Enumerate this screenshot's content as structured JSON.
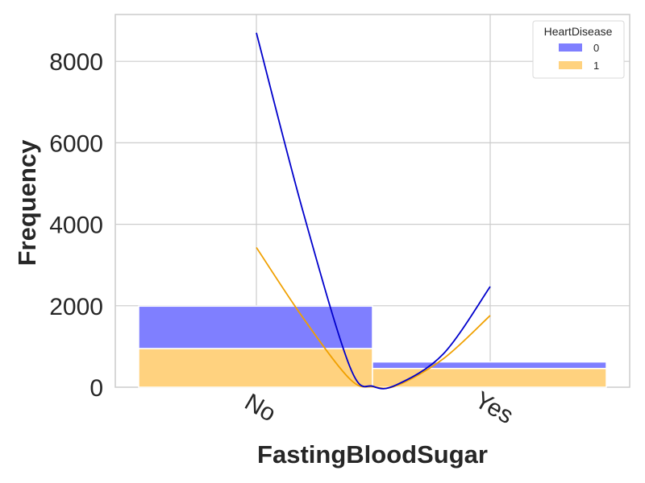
{
  "chart_data": {
    "type": "bar",
    "stacked": true,
    "categories": [
      "No",
      "Yes"
    ],
    "series": [
      {
        "name": "0",
        "values": [
          1040,
          160
        ],
        "color": "#7f7fff"
      },
      {
        "name": "1",
        "values": [
          950,
          460
        ],
        "color": "#ffd27f"
      }
    ],
    "kde": [
      {
        "name": "0",
        "color": "#0000cc",
        "points": [
          [
            0,
            8700
          ],
          [
            0.2,
            4300
          ],
          [
            0.4,
            500
          ],
          [
            0.5,
            20
          ],
          [
            0.6,
            60
          ],
          [
            0.8,
            820
          ],
          [
            1,
            2470
          ]
        ]
      },
      {
        "name": "1",
        "color": "#f0a000",
        "points": [
          [
            0,
            3430
          ],
          [
            0.2,
            1700
          ],
          [
            0.4,
            200
          ],
          [
            0.5,
            10
          ],
          [
            0.6,
            40
          ],
          [
            0.8,
            700
          ],
          [
            1,
            1760
          ]
        ]
      }
    ],
    "xlabel": "FastingBloodSugar",
    "ylabel": "Frequency",
    "yticks": [
      0,
      2000,
      4000,
      6000,
      8000
    ],
    "ylim": [
      0,
      9150
    ],
    "grid": true,
    "legend": {
      "title": "HeartDisease",
      "placement": "top-right",
      "entries": [
        "0",
        "1"
      ]
    }
  }
}
